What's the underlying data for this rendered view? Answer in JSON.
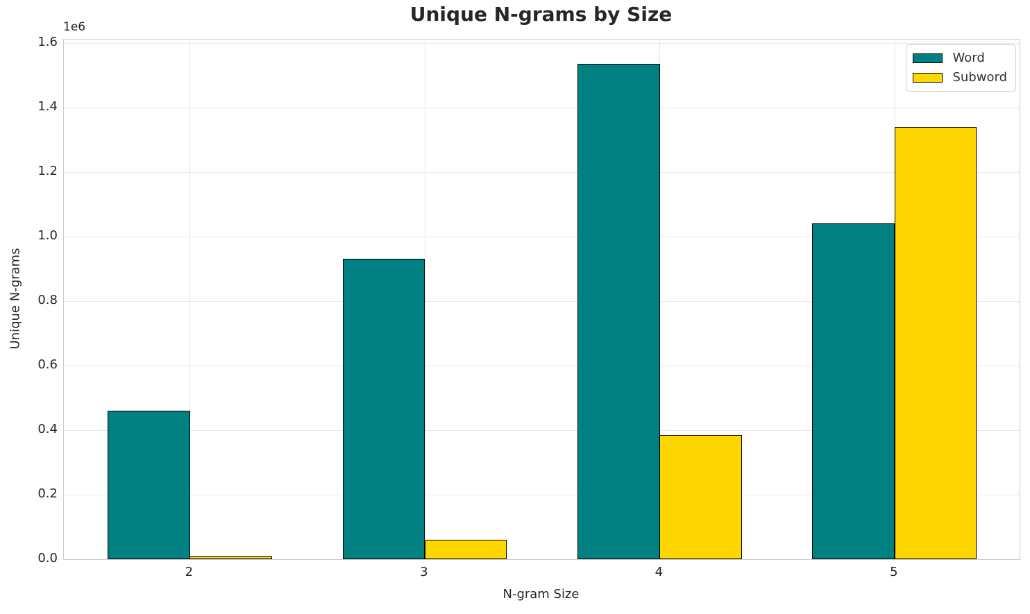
{
  "chart_data": {
    "type": "bar",
    "title": "Unique N-grams by Size",
    "xlabel": "N-gram Size",
    "ylabel": "Unique N-grams",
    "offset_text": "1e6",
    "categories": [
      "2",
      "3",
      "4",
      "5"
    ],
    "x_positions": [
      2,
      3,
      4,
      5
    ],
    "series": [
      {
        "name": "Word",
        "color": "#008080",
        "values": [
          460000,
          930000,
          1535000,
          1040000
        ]
      },
      {
        "name": "Subword",
        "color": "#FFD700",
        "values": [
          8000,
          60000,
          385000,
          1340000
        ]
      }
    ],
    "bar_edge_color": "#000000",
    "bar_width": 0.35,
    "ylim": [
      0,
      1610000
    ],
    "xlim": [
      1.464,
      5.532
    ],
    "ytick_step": 200000,
    "ytick_labels": [
      "0.0",
      "0.2",
      "0.4",
      "0.6",
      "0.8",
      "1.0",
      "1.2",
      "1.4",
      "1.6"
    ],
    "grid": true,
    "legend_position": "upper right"
  }
}
